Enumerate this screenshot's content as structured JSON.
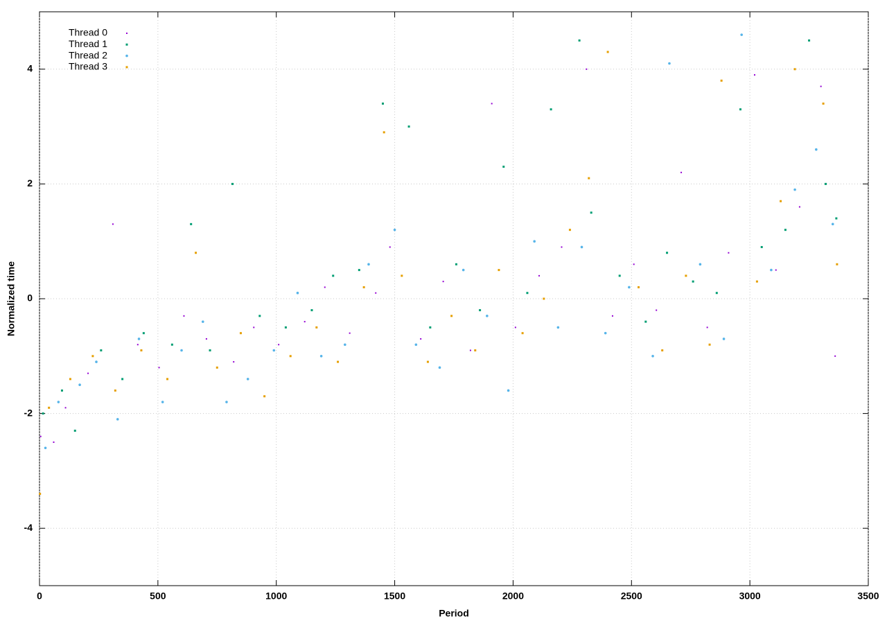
{
  "chart_data": {
    "type": "scatter",
    "xlabel": "Period",
    "ylabel": "Normalized time",
    "xlim": [
      0,
      3500
    ],
    "ylim": [
      -5,
      5
    ],
    "xticks": [
      0,
      500,
      1000,
      1500,
      2000,
      2500,
      3000,
      3500
    ],
    "yticks": [
      -4,
      -2,
      0,
      2,
      4
    ],
    "grid": true,
    "legend": "top-left",
    "series": [
      {
        "name": "Thread 0",
        "color": "#9400d3",
        "x": [
          5,
          60,
          110,
          205,
          310,
          415,
          505,
          610,
          705,
          820,
          905,
          1010,
          1120,
          1205,
          1310,
          1420,
          1480,
          1610,
          1705,
          1820,
          1910,
          2010,
          2110,
          2205,
          2310,
          2420,
          2510,
          2605,
          2710,
          2820,
          2910,
          3020,
          3110,
          3210,
          3300,
          3360
        ],
        "values": [
          -2.4,
          -2.5,
          -1.9,
          -1.3,
          1.3,
          -0.8,
          -1.2,
          -0.3,
          -0.7,
          -1.1,
          -0.5,
          -0.8,
          -0.4,
          0.2,
          -0.6,
          0.1,
          0.9,
          -0.7,
          0.3,
          -0.9,
          3.4,
          -0.5,
          0.4,
          0.9,
          4.0,
          -0.3,
          0.6,
          -0.2,
          2.2,
          -0.5,
          0.8,
          3.9,
          0.5,
          1.6,
          3.7,
          -1.0
        ]
      },
      {
        "name": "Thread 1",
        "color": "#009e73",
        "x": [
          15,
          95,
          150,
          260,
          350,
          440,
          560,
          640,
          720,
          815,
          930,
          1040,
          1150,
          1240,
          1350,
          1450,
          1560,
          1650,
          1760,
          1860,
          1960,
          2060,
          2160,
          2280,
          2330,
          2450,
          2560,
          2650,
          2760,
          2860,
          2960,
          3050,
          3150,
          3250,
          3320,
          3365
        ],
        "values": [
          -2.0,
          -1.6,
          -2.3,
          -0.9,
          -1.4,
          -0.6,
          -0.8,
          1.3,
          -0.9,
          2.0,
          -0.3,
          -0.5,
          -0.2,
          0.4,
          0.5,
          3.4,
          3.0,
          -0.5,
          0.6,
          -0.2,
          2.3,
          0.1,
          3.3,
          4.5,
          1.5,
          0.4,
          -0.4,
          0.8,
          0.3,
          0.1,
          3.3,
          0.9,
          1.2,
          4.5,
          2.0,
          1.4
        ]
      },
      {
        "name": "Thread 2",
        "color": "#56b4e9",
        "x": [
          25,
          80,
          170,
          240,
          330,
          420,
          520,
          600,
          690,
          790,
          880,
          990,
          1090,
          1190,
          1290,
          1390,
          1500,
          1590,
          1690,
          1790,
          1890,
          1980,
          2090,
          2190,
          2290,
          2390,
          2490,
          2590,
          2660,
          2790,
          2890,
          2965,
          3090,
          3190,
          3280,
          3350
        ],
        "values": [
          -2.6,
          -1.8,
          -1.5,
          -1.1,
          -2.1,
          -0.7,
          -1.8,
          -0.9,
          -0.4,
          -1.8,
          -1.4,
          -0.9,
          0.1,
          -1.0,
          -0.8,
          0.6,
          1.2,
          -0.8,
          -1.2,
          0.5,
          -0.3,
          -1.6,
          1.0,
          -0.5,
          0.9,
          -0.6,
          0.2,
          -1.0,
          4.1,
          0.6,
          -0.7,
          4.6,
          0.5,
          1.9,
          2.6,
          1.3
        ]
      },
      {
        "name": "Thread 3",
        "color": "#e69f00",
        "x": [
          2,
          40,
          130,
          225,
          320,
          430,
          540,
          660,
          750,
          850,
          950,
          1060,
          1170,
          1260,
          1370,
          1455,
          1530,
          1640,
          1740,
          1840,
          1940,
          2040,
          2130,
          2240,
          2320,
          2400,
          2530,
          2630,
          2730,
          2830,
          2880,
          3030,
          3130,
          3190,
          3310,
          3368
        ],
        "values": [
          -3.4,
          -1.9,
          -1.4,
          -1.0,
          -1.6,
          -0.9,
          -1.4,
          0.8,
          -1.2,
          -0.6,
          -1.7,
          -1.0,
          -0.5,
          -1.1,
          0.2,
          2.9,
          0.4,
          -1.1,
          -0.3,
          -0.9,
          0.5,
          -0.6,
          0.0,
          1.2,
          2.1,
          4.3,
          0.2,
          -0.9,
          0.4,
          -0.8,
          3.8,
          0.3,
          1.7,
          4.0,
          3.4,
          0.6
        ]
      }
    ]
  }
}
